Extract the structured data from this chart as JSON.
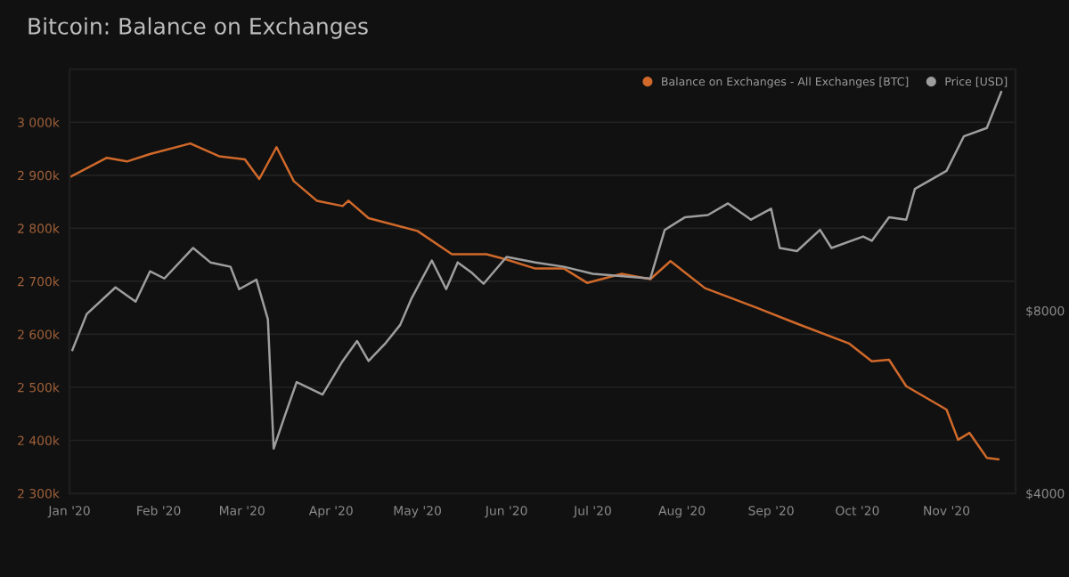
{
  "chart_data": {
    "type": "line",
    "title": "Bitcoin: Balance on Exchanges",
    "series": [
      {
        "name": "Balance on Exchanges - All Exchanges [BTC]",
        "color": "#d0692a",
        "axis": "y",
        "x": [
          "2020-01-01",
          "2020-01-14",
          "2020-01-21",
          "2020-01-29",
          "2020-02-12",
          "2020-02-22",
          "2020-03-02",
          "2020-03-07",
          "2020-03-13",
          "2020-03-19",
          "2020-03-27",
          "2020-04-05",
          "2020-04-07",
          "2020-04-14",
          "2020-05-01",
          "2020-05-13",
          "2020-05-25",
          "2020-06-01",
          "2020-06-11",
          "2020-06-21",
          "2020-06-29",
          "2020-07-11",
          "2020-07-21",
          "2020-07-28",
          "2020-08-09",
          "2020-08-27",
          "2020-09-10",
          "2020-09-28",
          "2020-10-06",
          "2020-10-12",
          "2020-10-18",
          "2020-11-01",
          "2020-11-05",
          "2020-11-09",
          "2020-11-15",
          "2020-11-19"
        ],
        "values": [
          2896,
          2933,
          2926,
          2940,
          2960,
          2936,
          2930,
          2893,
          2953,
          2889,
          2852,
          2842,
          2852,
          2819,
          2795,
          2751,
          2751,
          2741,
          2724,
          2724,
          2697,
          2714,
          2704,
          2738,
          2687,
          2650,
          2620,
          2583,
          2549,
          2552,
          2502,
          2458,
          2401,
          2414,
          2367,
          2364
        ]
      },
      {
        "name": "Price [USD]",
        "color": "#9e9e9e",
        "axis": "y2",
        "x": [
          "2020-01-02",
          "2020-01-07",
          "2020-01-17",
          "2020-01-24",
          "2020-01-29",
          "2020-02-03",
          "2020-02-13",
          "2020-02-19",
          "2020-02-26",
          "2020-02-29",
          "2020-03-06",
          "2020-03-10",
          "2020-03-12",
          "2020-03-16",
          "2020-03-20",
          "2020-03-29",
          "2020-04-05",
          "2020-04-10",
          "2020-04-14",
          "2020-04-20",
          "2020-04-25",
          "2020-04-29",
          "2020-05-06",
          "2020-05-11",
          "2020-05-15",
          "2020-05-20",
          "2020-05-24",
          "2020-06-01",
          "2020-06-11",
          "2020-06-21",
          "2020-07-01",
          "2020-07-21",
          "2020-07-26",
          "2020-08-02",
          "2020-08-10",
          "2020-08-17",
          "2020-08-25",
          "2020-09-01",
          "2020-09-04",
          "2020-09-10",
          "2020-09-18",
          "2020-09-22",
          "2020-10-03",
          "2020-10-06",
          "2020-10-12",
          "2020-10-18",
          "2020-10-21",
          "2020-11-01",
          "2020-11-07",
          "2020-11-15",
          "2020-11-20"
        ],
        "values": [
          6890,
          7900,
          8740,
          8280,
          9290,
          9040,
          10150,
          9610,
          9450,
          8680,
          9000,
          7740,
          4740,
          5390,
          6100,
          5820,
          6610,
          7130,
          6610,
          7080,
          7580,
          8390,
          9680,
          8680,
          9610,
          9230,
          8860,
          9810,
          9610,
          9450,
          9200,
          9040,
          10870,
          11400,
          11500,
          12020,
          11300,
          11780,
          10150,
          10030,
          10870,
          10150,
          10600,
          10430,
          11400,
          11300,
          12700,
          13600,
          15500,
          16000,
          18340
        ]
      }
    ],
    "xlim": [
      "2020-01-01",
      "2020-11-25"
    ],
    "xticks": [
      {
        "value": "2020-01-01",
        "label": "Jan '20"
      },
      {
        "value": "2020-02-01",
        "label": "Feb '20"
      },
      {
        "value": "2020-03-01",
        "label": "Mar '20"
      },
      {
        "value": "2020-04-01",
        "label": "Apr '20"
      },
      {
        "value": "2020-05-01",
        "label": "May '20"
      },
      {
        "value": "2020-06-01",
        "label": "Jun '20"
      },
      {
        "value": "2020-07-01",
        "label": "Jul '20"
      },
      {
        "value": "2020-08-01",
        "label": "Aug '20"
      },
      {
        "value": "2020-09-01",
        "label": "Sep '20"
      },
      {
        "value": "2020-10-01",
        "label": "Oct '20"
      },
      {
        "value": "2020-11-01",
        "label": "Nov '20"
      }
    ],
    "ylim": [
      2300,
      3100
    ],
    "yticks": [
      {
        "value": 2300,
        "label": "2 300k"
      },
      {
        "value": 2400,
        "label": "2 400k"
      },
      {
        "value": 2500,
        "label": "2 500k"
      },
      {
        "value": 2600,
        "label": "2 600k"
      },
      {
        "value": 2700,
        "label": "2 700k"
      },
      {
        "value": 2800,
        "label": "2 800k"
      },
      {
        "value": 2900,
        "label": "2 900k"
      },
      {
        "value": 3000,
        "label": "3 000k"
      }
    ],
    "y2lim": [
      4000,
      20000
    ],
    "y2ticks": [
      {
        "value": 4000,
        "label": "$4000"
      },
      {
        "value": 8000,
        "label": "$8000"
      }
    ],
    "log": "y2",
    "grid": "y",
    "legend": "top right",
    "marker": "none",
    "line_style": "solid"
  }
}
